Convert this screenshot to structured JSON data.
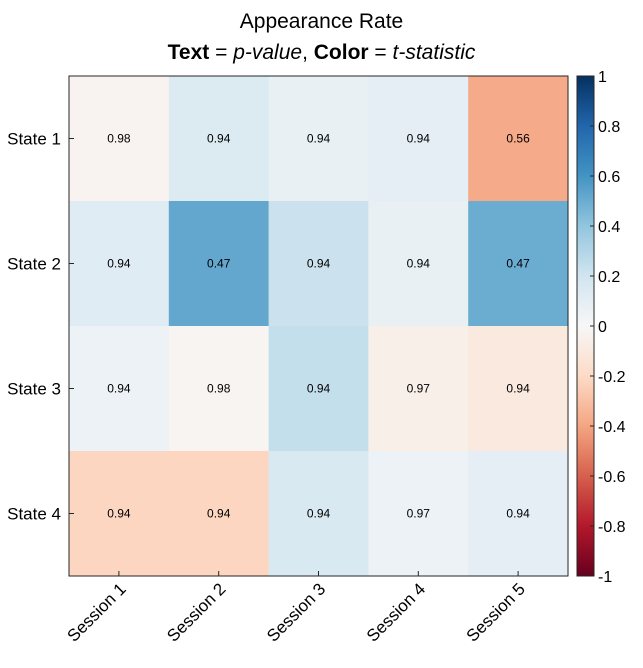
{
  "chart_data": {
    "type": "heatmap",
    "title": "Appearance Rate",
    "subtitle": {
      "part1_bold": "Text",
      "part1_eq": " = ",
      "part1_italic": "p-value",
      "sep": ", ",
      "part2_bold": "Color",
      "part2_eq": " = ",
      "part2_italic": "t-statistic"
    },
    "rows": [
      "State 1",
      "State 2",
      "State 3",
      "State 4"
    ],
    "columns": [
      "Session 1",
      "Session 2",
      "Session 3",
      "Session 4",
      "Session 5"
    ],
    "p_values": [
      [
        "0.98",
        "0.94",
        "0.94",
        "0.94",
        "0.56"
      ],
      [
        "0.94",
        "0.47",
        "0.94",
        "0.94",
        "0.47"
      ],
      [
        "0.94",
        "0.98",
        "0.94",
        "0.97",
        "0.94"
      ],
      [
        "0.94",
        "0.94",
        "0.94",
        "0.97",
        "0.94"
      ]
    ],
    "t_statistic": [
      [
        -0.03,
        0.14,
        0.08,
        0.1,
        -0.38
      ],
      [
        0.12,
        0.52,
        0.22,
        0.08,
        0.5
      ],
      [
        0.06,
        -0.02,
        0.24,
        -0.06,
        -0.1
      ],
      [
        -0.22,
        -0.22,
        0.16,
        0.06,
        0.1
      ]
    ],
    "colorbar": {
      "range": [
        -1,
        1
      ],
      "ticks": [
        "1",
        "0.8",
        "0.6",
        "0.4",
        "0.2",
        "0",
        "-0.2",
        "-0.4",
        "-0.6",
        "-0.8",
        "-1"
      ],
      "colormap": "diverging red-white-blue"
    }
  }
}
